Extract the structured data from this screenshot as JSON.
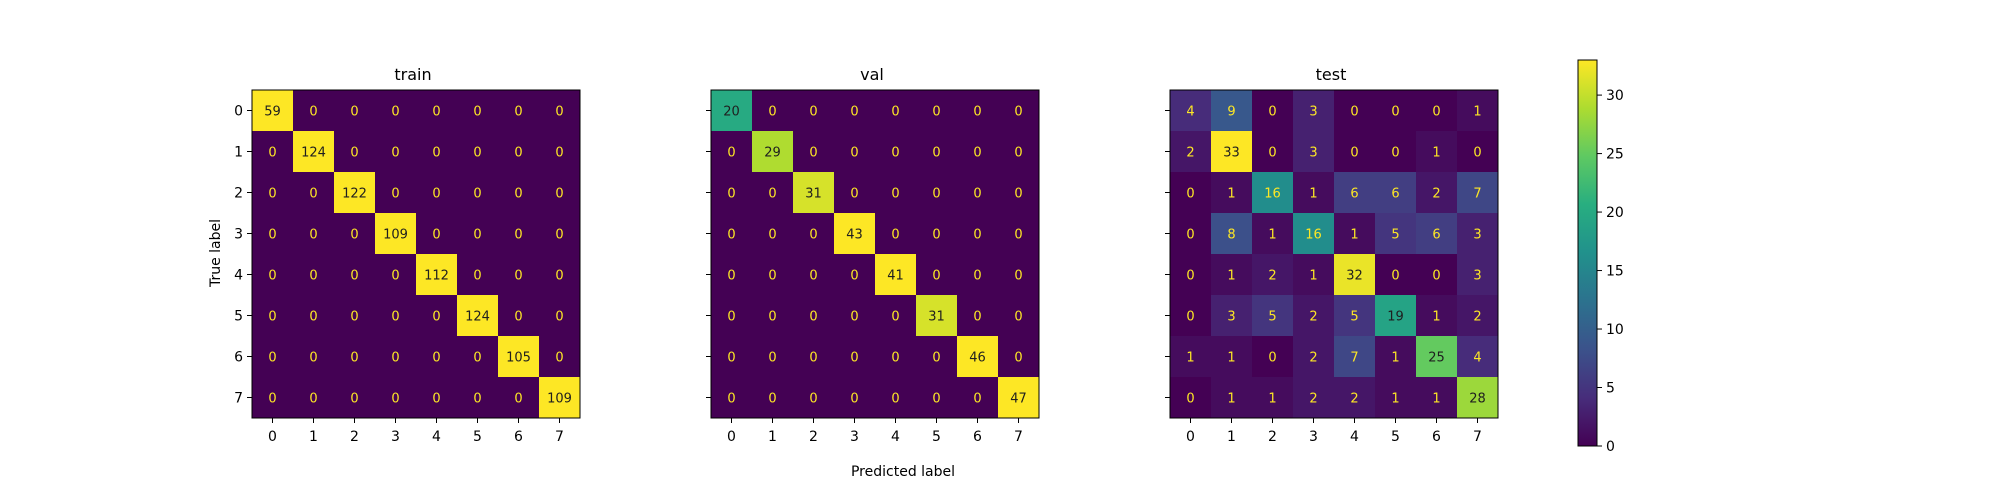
{
  "chart_data": {
    "type": "heatmap",
    "panels": [
      {
        "title": "train",
        "x_ticks": [
          "0",
          "1",
          "2",
          "3",
          "4",
          "5",
          "6",
          "7"
        ],
        "y_ticks": [
          "0",
          "1",
          "2",
          "3",
          "4",
          "5",
          "6",
          "7"
        ],
        "matrix": [
          [
            59,
            0,
            0,
            0,
            0,
            0,
            0,
            0
          ],
          [
            0,
            124,
            0,
            0,
            0,
            0,
            0,
            0
          ],
          [
            0,
            0,
            122,
            0,
            0,
            0,
            0,
            0
          ],
          [
            0,
            0,
            0,
            109,
            0,
            0,
            0,
            0
          ],
          [
            0,
            0,
            0,
            0,
            112,
            0,
            0,
            0
          ],
          [
            0,
            0,
            0,
            0,
            0,
            124,
            0,
            0
          ],
          [
            0,
            0,
            0,
            0,
            0,
            0,
            105,
            0
          ],
          [
            0,
            0,
            0,
            0,
            0,
            0,
            0,
            109
          ]
        ]
      },
      {
        "title": "val",
        "x_ticks": [
          "0",
          "1",
          "2",
          "3",
          "4",
          "5",
          "6",
          "7"
        ],
        "y_ticks": [],
        "matrix": [
          [
            20,
            0,
            0,
            0,
            0,
            0,
            0,
            0
          ],
          [
            0,
            29,
            0,
            0,
            0,
            0,
            0,
            0
          ],
          [
            0,
            0,
            31,
            0,
            0,
            0,
            0,
            0
          ],
          [
            0,
            0,
            0,
            43,
            0,
            0,
            0,
            0
          ],
          [
            0,
            0,
            0,
            0,
            41,
            0,
            0,
            0
          ],
          [
            0,
            0,
            0,
            0,
            0,
            31,
            0,
            0
          ],
          [
            0,
            0,
            0,
            0,
            0,
            0,
            46,
            0
          ],
          [
            0,
            0,
            0,
            0,
            0,
            0,
            0,
            47
          ]
        ]
      },
      {
        "title": "test",
        "x_ticks": [
          "0",
          "1",
          "2",
          "3",
          "4",
          "5",
          "6",
          "7"
        ],
        "y_ticks": [],
        "matrix": [
          [
            4,
            9,
            0,
            3,
            0,
            0,
            0,
            1
          ],
          [
            2,
            33,
            0,
            3,
            0,
            0,
            1,
            0
          ],
          [
            0,
            1,
            16,
            1,
            6,
            6,
            2,
            7
          ],
          [
            0,
            8,
            1,
            16,
            1,
            5,
            6,
            3
          ],
          [
            0,
            1,
            2,
            1,
            32,
            0,
            0,
            3
          ],
          [
            0,
            3,
            5,
            2,
            5,
            19,
            1,
            2
          ],
          [
            1,
            1,
            0,
            2,
            7,
            1,
            25,
            4
          ],
          [
            0,
            1,
            1,
            2,
            2,
            1,
            1,
            28
          ]
        ]
      }
    ],
    "xlabel": "Predicted label",
    "ylabel": "True label",
    "colorbar": {
      "colormap": "viridis",
      "range": [
        0,
        33
      ],
      "ticks": [
        "0",
        "5",
        "10",
        "15",
        "20",
        "25",
        "30"
      ]
    },
    "colors": {
      "text_on_dark": "#fde725",
      "text_on_light": "#1f1f1f"
    }
  }
}
